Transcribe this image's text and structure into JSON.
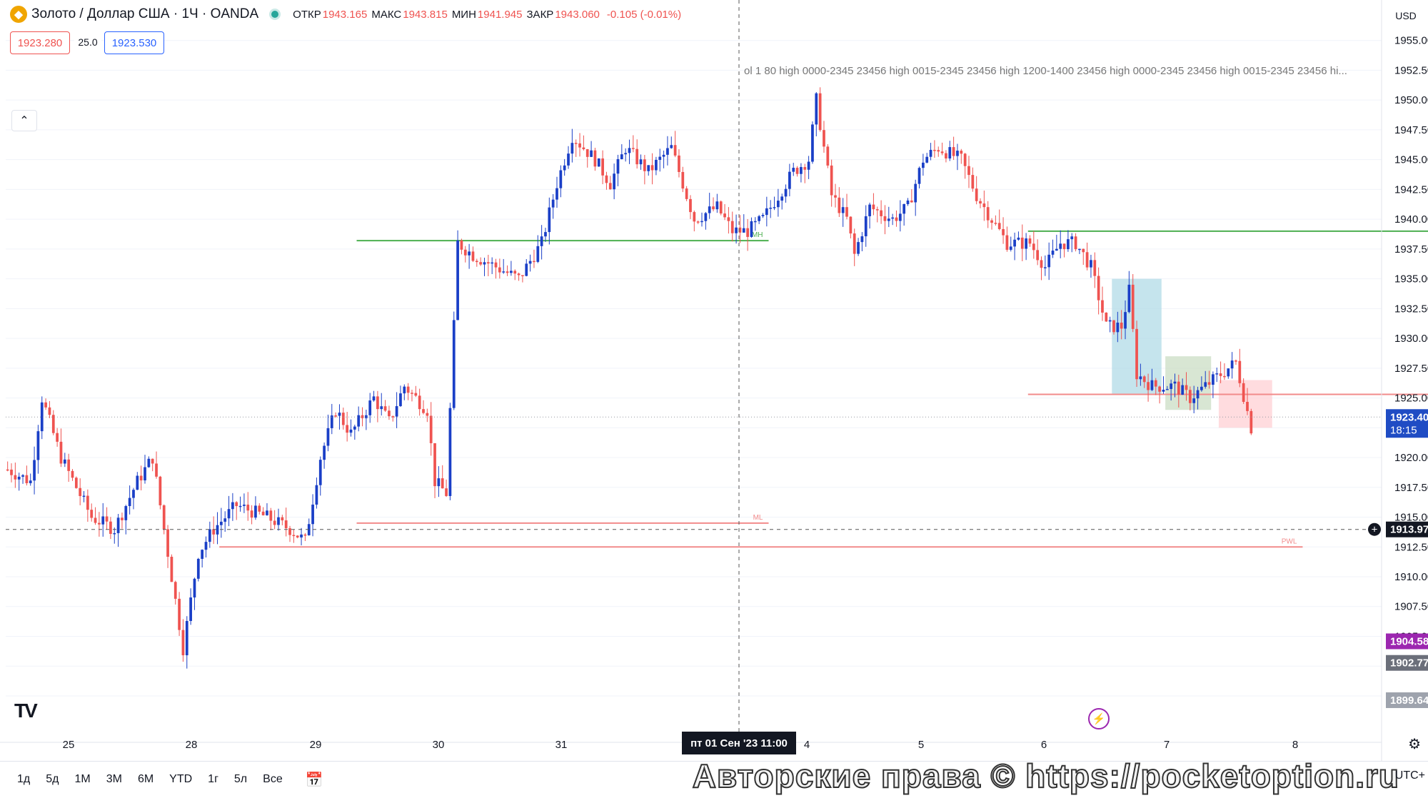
{
  "header": {
    "symbol_title": "Золото / Доллар США · 1Ч · OANDA",
    "open_label": "ОТКР",
    "open_value": "1943.165",
    "high_label": "МАКС",
    "high_value": "1943.815",
    "low_label": "МИН",
    "low_value": "1941.945",
    "close_label": "ЗАКР",
    "close_value": "1943.060",
    "change": "-0.105 (-0.01%)",
    "sell_price": "1923.280",
    "spread": "25.0",
    "buy_price": "1923.530"
  },
  "axis_currency": "USD",
  "indicator_text": "ol 1 80 high 0000-2345 23456 high 0015-2345 23456 high 1200-1400 23456 high 0000-2345 23456 high 0015-2345 23456 hi...",
  "crosshair_label": "пт 01 Сен '23    11:00",
  "timeframes": [
    "1д",
    "5д",
    "1М",
    "3М",
    "6М",
    "YTD",
    "1г",
    "5л",
    "Все"
  ],
  "copyright": "Авторские права © https://pocketoption.ru",
  "bottom_right_mode": "UTC+",
  "colors": {
    "up": "#1a3fc7",
    "down": "#ef5350",
    "green_line": "#4caf50",
    "red_line": "#f28b8b",
    "price_badge": "#1f4cc4",
    "purple_badge": "#9c27b0",
    "gray_badge": "#6b6f7a"
  },
  "chart_data": {
    "type": "candlestick",
    "title": "Золото / Доллар США · 1Ч · OANDA",
    "ylim": [
      1898.5,
      1956
    ],
    "y_ticks": [
      1900.0,
      1902.5,
      1905.0,
      1907.5,
      1910.0,
      1912.5,
      1915.0,
      1917.5,
      1920.0,
      1922.5,
      1925.0,
      1927.5,
      1930.0,
      1932.5,
      1935.0,
      1937.5,
      1940.0,
      1942.5,
      1945.0,
      1947.5,
      1950.0,
      1952.5,
      1955.0
    ],
    "y_tick_labels": [
      "1900.00",
      "1902.50",
      "1905.00",
      "1907.50",
      "1910.00",
      "1912.50",
      "1915.00",
      "1917.50",
      "1920.00",
      "1922.50",
      "1925.00",
      "1927.50",
      "1930.00",
      "1932.50",
      "1935.00",
      "1937.50",
      "1940.00",
      "1942.50",
      "1945.00",
      "1947.50",
      "1950.00",
      "1952.50",
      "1955.00"
    ],
    "x_tick_labels": [
      "25",
      "28",
      "29",
      "30",
      "31",
      "4",
      "5",
      "6",
      "7",
      "8"
    ],
    "grid": true,
    "anchors": [
      [
        0,
        1919
      ],
      [
        6,
        1918
      ],
      [
        9,
        1925
      ],
      [
        14,
        1920
      ],
      [
        22,
        1915
      ],
      [
        28,
        1914
      ],
      [
        34,
        1918
      ],
      [
        38,
        1920
      ],
      [
        40,
        1916
      ],
      [
        43,
        1910
      ],
      [
        46,
        1904
      ],
      [
        50,
        1912
      ],
      [
        54,
        1914
      ],
      [
        60,
        1916
      ],
      [
        68,
        1915
      ],
      [
        74,
        1914
      ],
      [
        78,
        1913
      ],
      [
        82,
        1920
      ],
      [
        86,
        1924
      ],
      [
        90,
        1922
      ],
      [
        96,
        1925
      ],
      [
        100,
        1923
      ],
      [
        104,
        1926
      ],
      [
        110,
        1924
      ],
      [
        112,
        1918
      ],
      [
        115,
        1917
      ],
      [
        118,
        1938
      ],
      [
        122,
        1937
      ],
      [
        128,
        1936
      ],
      [
        134,
        1935
      ],
      [
        140,
        1938
      ],
      [
        144,
        1943
      ],
      [
        148,
        1947
      ],
      [
        154,
        1945
      ],
      [
        158,
        1943
      ],
      [
        162,
        1946
      ],
      [
        168,
        1944
      ],
      [
        174,
        1946
      ],
      [
        180,
        1940
      ],
      [
        186,
        1941
      ],
      [
        190,
        1939
      ],
      [
        194,
        1939
      ],
      [
        198,
        1940
      ],
      [
        202,
        1942
      ],
      [
        206,
        1944
      ],
      [
        210,
        1945
      ],
      [
        212,
        1950
      ],
      [
        216,
        1942
      ],
      [
        220,
        1940
      ],
      [
        222,
        1937
      ],
      [
        226,
        1941
      ],
      [
        232,
        1940
      ],
      [
        236,
        1941
      ],
      [
        240,
        1945
      ],
      [
        244,
        1946
      ],
      [
        250,
        1945
      ],
      [
        254,
        1942
      ],
      [
        258,
        1940
      ],
      [
        262,
        1938
      ],
      [
        268,
        1938
      ],
      [
        272,
        1936
      ],
      [
        276,
        1938
      ],
      [
        280,
        1938
      ],
      [
        284,
        1936
      ],
      [
        288,
        1931
      ],
      [
        292,
        1931
      ],
      [
        294,
        1934
      ],
      [
        296,
        1927
      ],
      [
        300,
        1926
      ],
      [
        306,
        1926
      ],
      [
        310,
        1925
      ],
      [
        314,
        1926
      ],
      [
        318,
        1927
      ],
      [
        322,
        1928
      ],
      [
        326,
        1922.5
      ]
    ],
    "bars_total": 327,
    "levels": [
      {
        "name": "PDH",
        "value": 1939.0,
        "x_from": 268,
        "x_to": 380
      },
      {
        "name": "MH",
        "value": 1938.2,
        "x_from": 92,
        "x_to": 200
      },
      {
        "name": "PDL",
        "value": 1925.3,
        "x_from": 268,
        "x_to": 380
      },
      {
        "name": "ML",
        "value": 1914.5,
        "x_from": 92,
        "x_to": 200
      },
      {
        "name": "PWL",
        "value": 1912.5,
        "x_from": 56,
        "x_to": 340
      }
    ],
    "zones": [
      {
        "color": "#add8e6",
        "y1": 1935.0,
        "y2": 1925.3,
        "x_from": 290,
        "x_to": 303
      },
      {
        "color": "#c8dcc0",
        "y1": 1928.5,
        "y2": 1924.0,
        "x_from": 304,
        "x_to": 316
      },
      {
        "color": "#ffcdd2",
        "y1": 1926.5,
        "y2": 1922.5,
        "x_from": 318,
        "x_to": 332
      }
    ],
    "last_price": "1923.40",
    "countdown": "18:15",
    "crosshair_price": "1913.97",
    "purple_price": "1904.58",
    "gray_price": "1902.77",
    "faded_price": "1899.64"
  }
}
